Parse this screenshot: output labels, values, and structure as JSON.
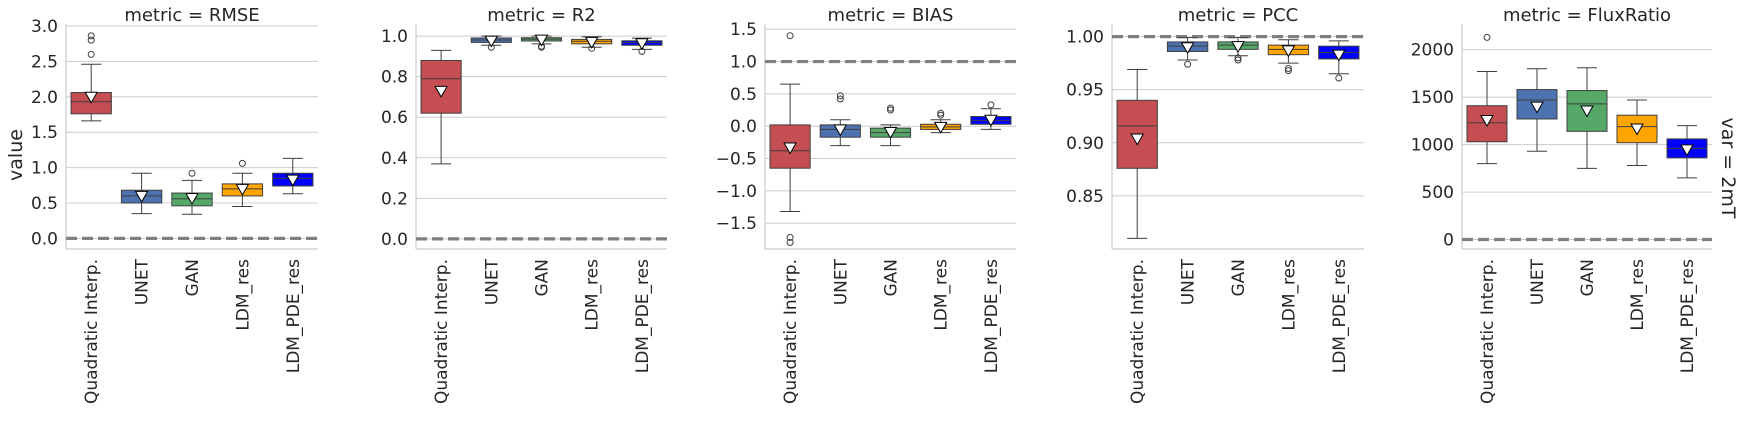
{
  "figure": {
    "ylabel": "value",
    "row_label": "var = 2mT"
  },
  "chart_data": [
    {
      "type": "box",
      "title": "metric = RMSE",
      "ylim": [
        -0.15,
        3.0
      ],
      "yticks": [
        "0.0",
        "0.5",
        "1.0",
        "1.5",
        "2.0",
        "2.5",
        "3.0"
      ],
      "ytick_values": [
        0.0,
        0.5,
        1.0,
        1.5,
        2.0,
        2.5,
        3.0
      ],
      "reference_line": 0.0,
      "categories": [
        "Quadratic Interp.",
        "UNET",
        "GAN",
        "LDM_res",
        "LDM_PDE_res"
      ],
      "boxes": [
        {
          "q1": 1.76,
          "median": 1.93,
          "q3": 2.06,
          "whislo": 1.66,
          "whishi": 2.46,
          "mean": 2.0,
          "fliers": [
            2.6,
            2.8,
            2.86
          ]
        },
        {
          "q1": 0.5,
          "median": 0.6,
          "q3": 0.68,
          "whislo": 0.35,
          "whishi": 0.92,
          "mean": 0.6,
          "fliers": []
        },
        {
          "q1": 0.46,
          "median": 0.56,
          "q3": 0.64,
          "whislo": 0.34,
          "whishi": 0.82,
          "mean": 0.57,
          "fliers": [
            0.92
          ]
        },
        {
          "q1": 0.6,
          "median": 0.7,
          "q3": 0.77,
          "whislo": 0.45,
          "whishi": 0.92,
          "mean": 0.7,
          "fliers": [
            1.06
          ]
        },
        {
          "q1": 0.74,
          "median": 0.85,
          "q3": 0.92,
          "whislo": 0.63,
          "whishi": 1.13,
          "mean": 0.83,
          "fliers": []
        }
      ]
    },
    {
      "type": "box",
      "title": "metric = R2",
      "ylim": [
        -0.05,
        1.05
      ],
      "yticks": [
        "0.0",
        "0.2",
        "0.4",
        "0.6",
        "0.8",
        "1.0"
      ],
      "ytick_values": [
        0.0,
        0.2,
        0.4,
        0.6,
        0.8,
        1.0
      ],
      "reference_line": 0.0,
      "categories": [
        "Quadratic Interp.",
        "UNET",
        "GAN",
        "LDM_res",
        "LDM_PDE_res"
      ],
      "boxes": [
        {
          "q1": 0.62,
          "median": 0.79,
          "q3": 0.88,
          "whislo": 0.37,
          "whishi": 0.93,
          "mean": 0.73,
          "fliers": []
        },
        {
          "q1": 0.969,
          "median": 0.981,
          "q3": 0.991,
          "whislo": 0.955,
          "whishi": 1.0,
          "mean": 0.978,
          "fliers": [
            0.945
          ]
        },
        {
          "q1": 0.976,
          "median": 0.985,
          "q3": 0.992,
          "whislo": 0.962,
          "whishi": 1.0,
          "mean": 0.983,
          "fliers": [
            0.95,
            0.945
          ]
        },
        {
          "q1": 0.962,
          "median": 0.975,
          "q3": 0.984,
          "whislo": 0.945,
          "whishi": 0.997,
          "mean": 0.972,
          "fliers": [
            0.94
          ]
        },
        {
          "q1": 0.955,
          "median": 0.968,
          "q3": 0.977,
          "whislo": 0.935,
          "whishi": 0.99,
          "mean": 0.965,
          "fliers": [
            0.925
          ]
        }
      ]
    },
    {
      "type": "box",
      "title": "metric = BIAS",
      "ylim": [
        -1.9,
        1.55
      ],
      "yticks": [
        "−1.5",
        "−1.0",
        "−0.5",
        "0.0",
        "0.5",
        "1.0",
        "1.5"
      ],
      "ytick_values": [
        -1.5,
        -1.0,
        -0.5,
        0.0,
        0.5,
        1.0,
        1.5
      ],
      "reference_line": 1.0,
      "categories": [
        "Quadratic Interp.",
        "UNET",
        "GAN",
        "LDM_res",
        "LDM_PDE_res"
      ],
      "boxes": [
        {
          "q1": -0.65,
          "median": -0.38,
          "q3": 0.02,
          "whislo": -1.32,
          "whishi": 0.65,
          "mean": -0.33,
          "fliers": [
            1.4,
            -1.72,
            -1.8
          ]
        },
        {
          "q1": -0.17,
          "median": -0.05,
          "q3": 0.02,
          "whislo": -0.3,
          "whishi": 0.1,
          "mean": -0.05,
          "fliers": [
            0.42,
            0.47
          ]
        },
        {
          "q1": -0.17,
          "median": -0.1,
          "q3": -0.03,
          "whislo": -0.3,
          "whishi": 0.02,
          "mean": -0.09,
          "fliers": [
            0.25,
            0.28
          ]
        },
        {
          "q1": -0.05,
          "median": -0.01,
          "q3": 0.03,
          "whislo": -0.1,
          "whishi": 0.1,
          "mean": -0.01,
          "fliers": [
            0.17,
            0.2
          ]
        },
        {
          "q1": 0.03,
          "median": 0.09,
          "q3": 0.15,
          "whislo": -0.05,
          "whishi": 0.27,
          "mean": 0.1,
          "fliers": [
            0.33
          ]
        }
      ]
    },
    {
      "type": "box",
      "title": "metric = PCC",
      "ylim": [
        0.8,
        1.01
      ],
      "yticks": [
        "0.85",
        "0.90",
        "0.95",
        "1.00"
      ],
      "ytick_values": [
        0.85,
        0.9,
        0.95,
        1.0
      ],
      "reference_line": 1.0,
      "categories": [
        "Quadratic Interp.",
        "UNET",
        "GAN",
        "LDM_res",
        "LDM_PDE_res"
      ],
      "boxes": [
        {
          "q1": 0.876,
          "median": 0.916,
          "q3": 0.94,
          "whislo": 0.81,
          "whishi": 0.969,
          "mean": 0.904,
          "fliers": []
        },
        {
          "q1": 0.986,
          "median": 0.991,
          "q3": 0.995,
          "whislo": 0.978,
          "whishi": 0.999,
          "mean": 0.99,
          "fliers": [
            0.974
          ]
        },
        {
          "q1": 0.988,
          "median": 0.992,
          "q3": 0.995,
          "whislo": 0.982,
          "whishi": 0.999,
          "mean": 0.991,
          "fliers": [
            0.98,
            0.978
          ]
        },
        {
          "q1": 0.983,
          "median": 0.988,
          "q3": 0.992,
          "whislo": 0.975,
          "whishi": 0.997,
          "mean": 0.987,
          "fliers": [
            0.97,
            0.968
          ]
        },
        {
          "q1": 0.979,
          "median": 0.985,
          "q3": 0.991,
          "whislo": 0.965,
          "whishi": 0.996,
          "mean": 0.983,
          "fliers": [
            0.961
          ]
        }
      ]
    },
    {
      "type": "box",
      "title": "metric = FluxRatio",
      "ylim": [
        -100,
        2250
      ],
      "yticks": [
        "0",
        "500",
        "1000",
        "1500",
        "2000"
      ],
      "ytick_values": [
        0,
        500,
        1000,
        1500,
        2000
      ],
      "reference_line": 0,
      "categories": [
        "Quadratic Interp.",
        "UNET",
        "GAN",
        "LDM_res",
        "LDM_PDE_res"
      ],
      "boxes": [
        {
          "q1": 1030,
          "median": 1230,
          "q3": 1410,
          "whislo": 800,
          "whishi": 1770,
          "mean": 1260,
          "fliers": [
            2130
          ]
        },
        {
          "q1": 1270,
          "median": 1470,
          "q3": 1580,
          "whislo": 930,
          "whishi": 1800,
          "mean": 1400,
          "fliers": []
        },
        {
          "q1": 1140,
          "median": 1430,
          "q3": 1570,
          "whislo": 750,
          "whishi": 1810,
          "mean": 1360,
          "fliers": []
        },
        {
          "q1": 1020,
          "median": 1190,
          "q3": 1310,
          "whislo": 780,
          "whishi": 1470,
          "mean": 1170,
          "fliers": []
        },
        {
          "q1": 860,
          "median": 960,
          "q3": 1060,
          "whislo": 650,
          "whishi": 1200,
          "mean": 950,
          "fliers": []
        }
      ]
    }
  ],
  "colors": {
    "boxes": [
      "#c44e52",
      "#4c72b0",
      "#55a868",
      "#ffa500",
      "#0000ff"
    ],
    "grid": "#cccccc",
    "spine": "#cccccc",
    "reference": "#808080",
    "edge": "#3f3f3f"
  }
}
